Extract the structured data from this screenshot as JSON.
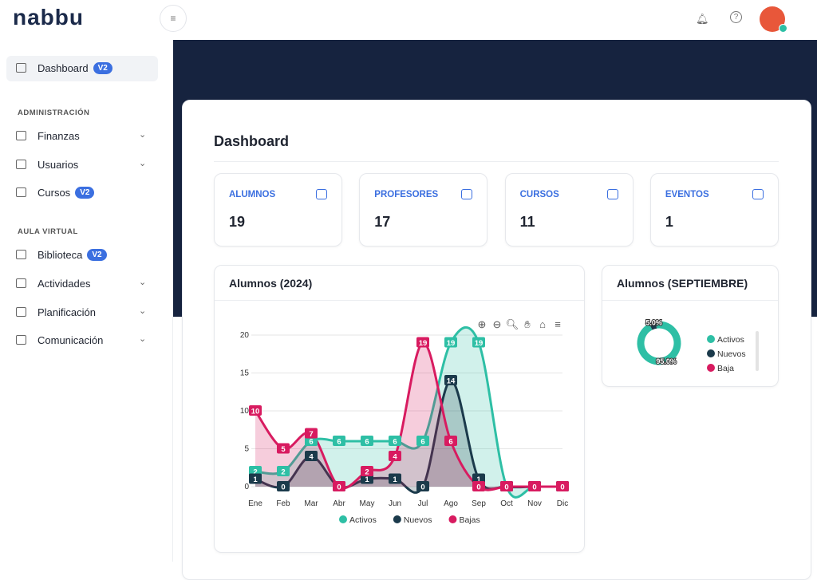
{
  "header": {
    "logo": "nabbu"
  },
  "sidebar": {
    "main": {
      "label": "Dashboard",
      "badge": "V2"
    },
    "sections": [
      {
        "title": "ADMINISTRACIÓN",
        "items": [
          {
            "label": "Finanzas",
            "expandable": true
          },
          {
            "label": "Usuarios",
            "expandable": true
          },
          {
            "label": "Cursos",
            "badge": "V2"
          }
        ]
      },
      {
        "title": "AULA VIRTUAL",
        "items": [
          {
            "label": "Biblioteca",
            "badge": "V2"
          },
          {
            "label": "Actividades",
            "expandable": true
          },
          {
            "label": "Planificación",
            "expandable": true
          },
          {
            "label": "Comunicación",
            "expandable": true
          }
        ]
      }
    ]
  },
  "page": {
    "title": "Dashboard",
    "stats": [
      {
        "label": "ALUMNOS",
        "value": 19
      },
      {
        "label": "PROFESORES",
        "value": 17
      },
      {
        "label": "CURSOS",
        "value": 11
      },
      {
        "label": "EVENTOS",
        "value": 1
      }
    ]
  },
  "chart_data": [
    {
      "type": "area",
      "title": "Alumnos (2024)",
      "categories": [
        "Ene",
        "Feb",
        "Mar",
        "Abr",
        "May",
        "Jun",
        "Jul",
        "Ago",
        "Sep",
        "Oct",
        "Nov",
        "Dic"
      ],
      "series": [
        {
          "name": "Activos",
          "color": "#2ebfa5",
          "values": [
            2,
            2,
            6,
            6,
            6,
            6,
            6,
            19,
            19,
            0,
            0,
            0
          ]
        },
        {
          "name": "Nuevos",
          "color": "#1b3a4b",
          "values": [
            1,
            0,
            4,
            0,
            1,
            1,
            0,
            14,
            1,
            0,
            0,
            0
          ]
        },
        {
          "name": "Bajas",
          "color": "#d81b60",
          "values": [
            10,
            5,
            7,
            0,
            2,
            4,
            19,
            6,
            0,
            0,
            0,
            0
          ]
        }
      ],
      "ylim": [
        0,
        20
      ],
      "yticks": [
        0,
        5,
        10,
        15,
        20
      ],
      "grid": true,
      "legend": "bottom"
    },
    {
      "type": "donut",
      "title": "Alumnos (SEPTIEMBRE)",
      "categories": [
        "Activos",
        "Nuevos",
        "Baja"
      ],
      "colors": [
        "#2ebfa5",
        "#1b3a4b",
        "#d81b60"
      ],
      "values": [
        95,
        5,
        0
      ],
      "value_labels": [
        "95.0%",
        "5.0%",
        null
      ],
      "legend": "right"
    }
  ]
}
